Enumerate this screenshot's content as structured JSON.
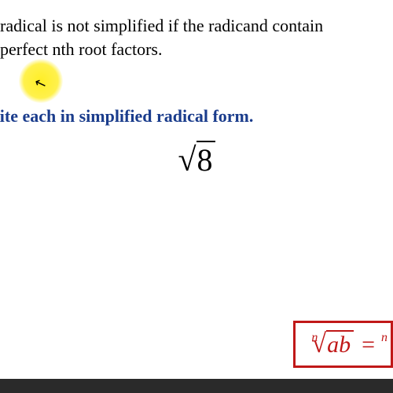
{
  "text": {
    "line1": "radical is not simplified if the radicand contain",
    "line2": " perfect nth root factors.",
    "instruction": "rite each in simplified radical form.",
    "main_radical_arg": "8",
    "formula_index": "n",
    "formula_arg": "ab",
    "formula_eq": "=",
    "formula_index2": "n"
  },
  "style": {
    "body_text_color": "#000000",
    "instruction_color": "#1a3c8c",
    "highlight_color": "#ffeb00",
    "formula_color": "#c01818",
    "background": "#ffffff",
    "body_fontsize": 22,
    "instruction_fontsize": 22,
    "radical_fontsize": 40,
    "formula_fontsize": 30
  }
}
